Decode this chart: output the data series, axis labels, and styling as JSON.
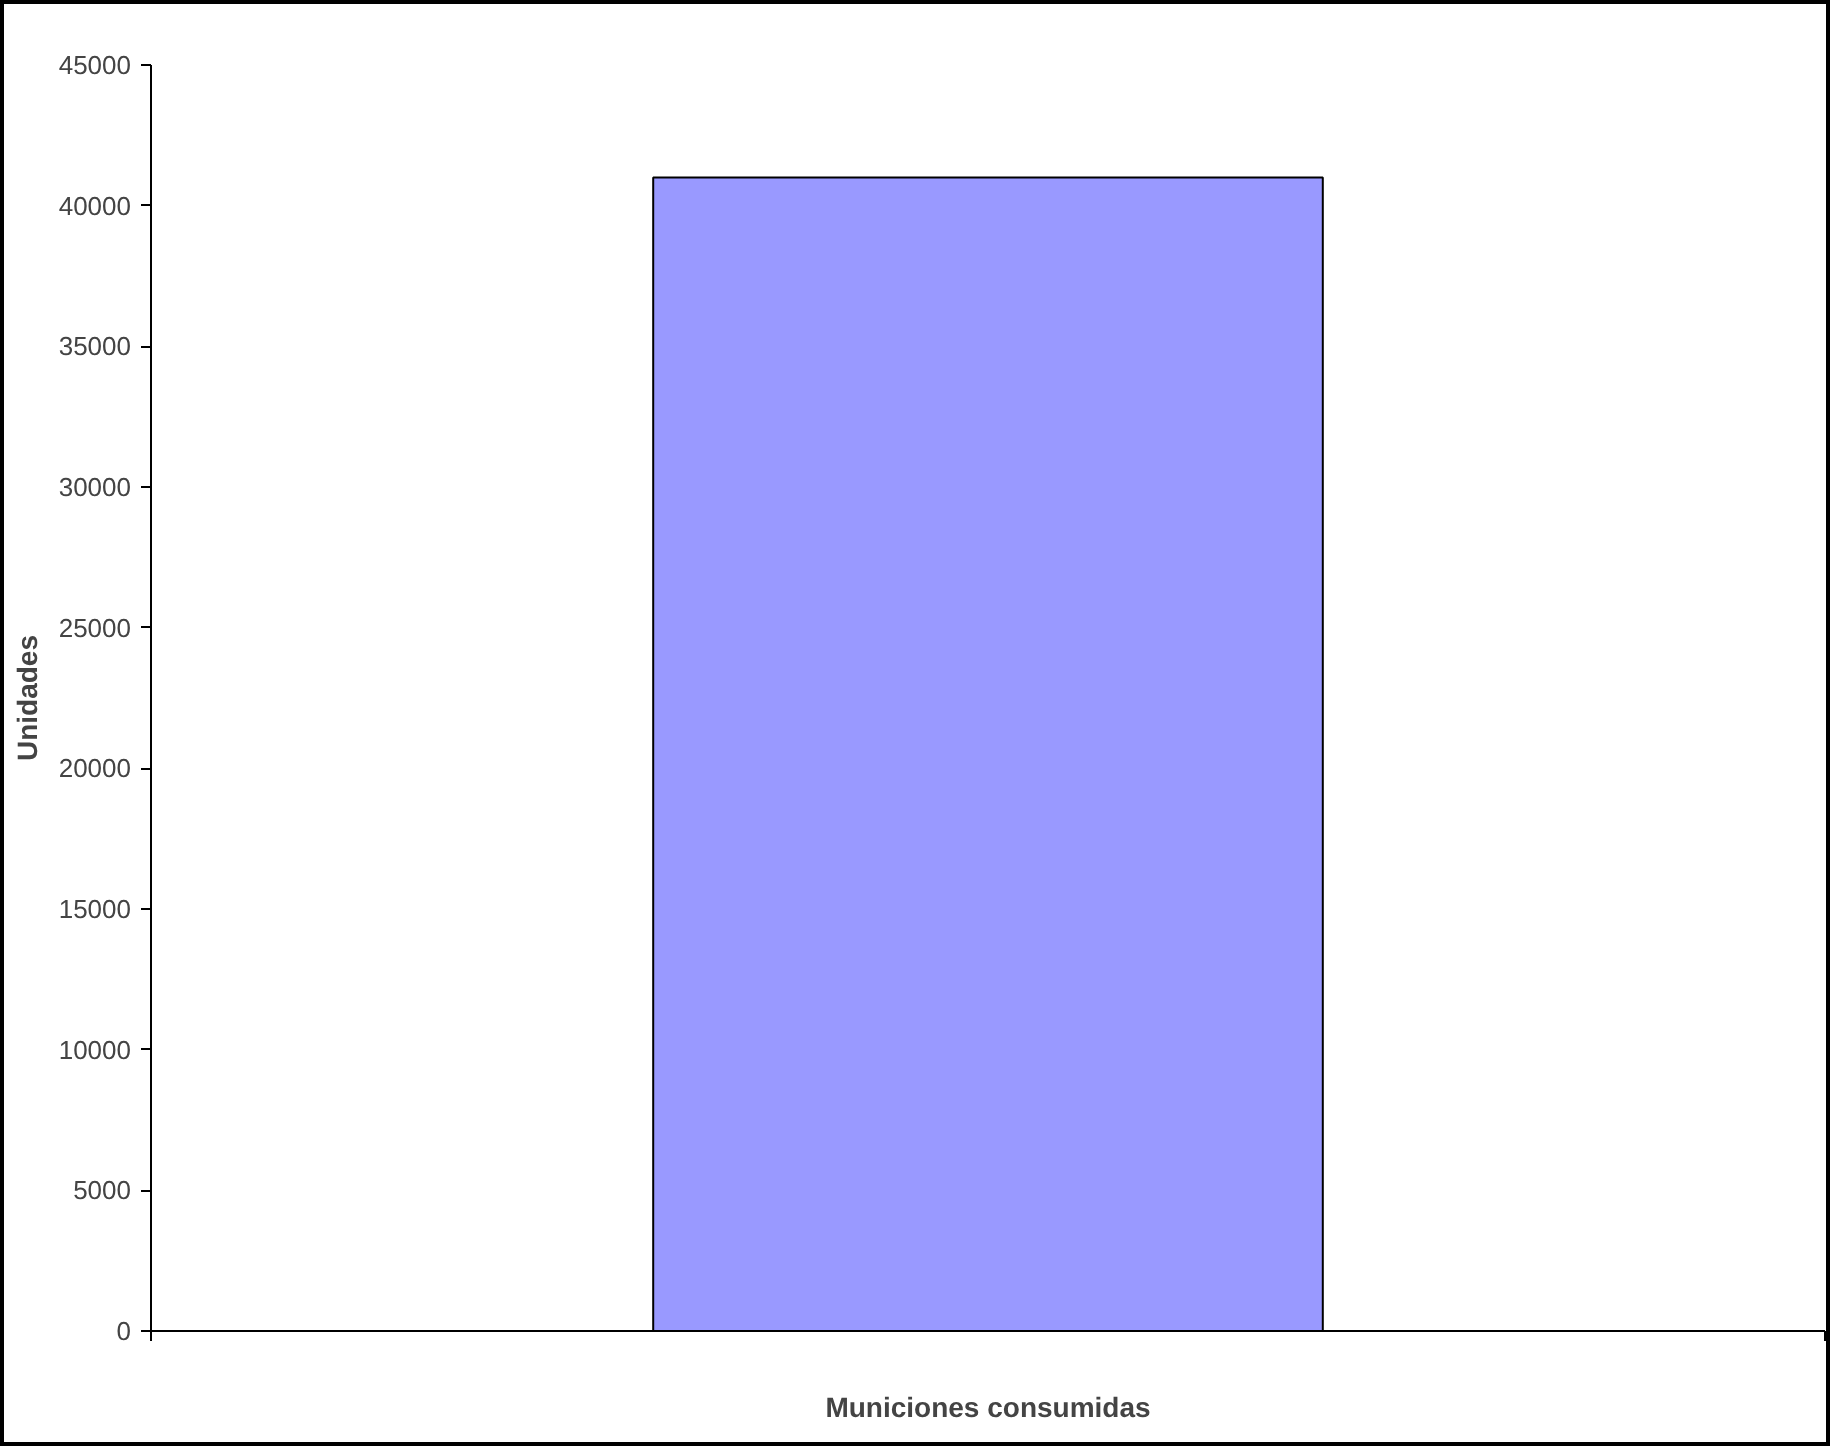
{
  "chart_data": {
    "type": "bar",
    "xlabel": "Municiones consumidas",
    "ylabel": "Unidades",
    "categories": [
      null
    ],
    "values": [
      41000
    ],
    "color": "#9999ff",
    "ylim": [
      0,
      45000
    ],
    "yticks": [
      0,
      5000,
      10000,
      15000,
      20000,
      25000,
      30000,
      35000,
      40000,
      45000
    ],
    "grid": false
  }
}
